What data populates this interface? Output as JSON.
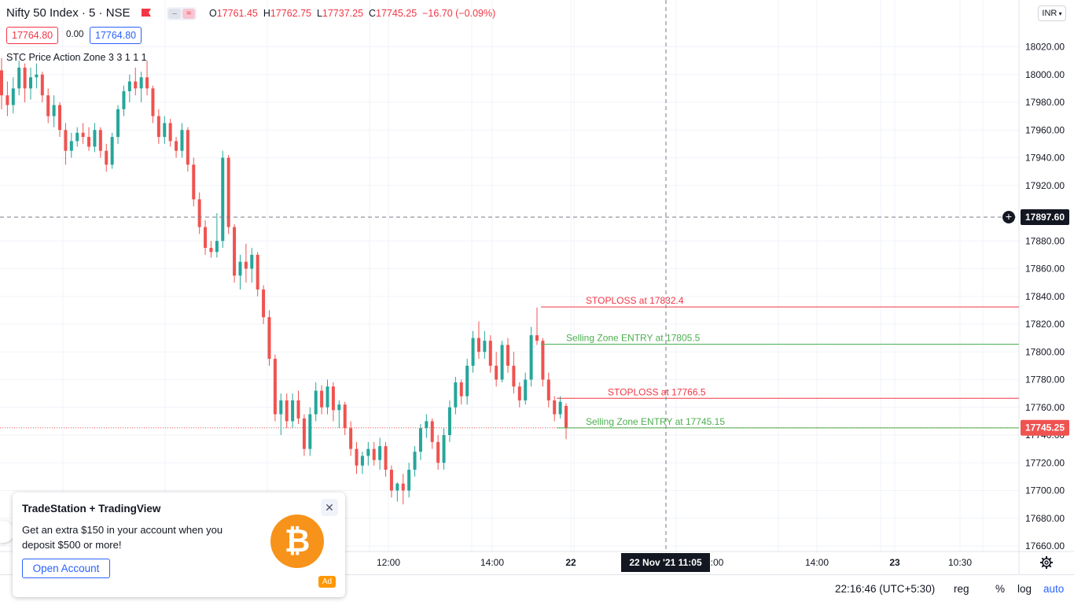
{
  "header": {
    "symbol": "Nifty 50 Index · 5 · NSE",
    "ohlc": {
      "o_label": "O",
      "o": "17761.45",
      "h_label": "H",
      "h": "17762.75",
      "l_label": "L",
      "l": "17737.25",
      "c_label": "C",
      "c": "17745.25",
      "change": "−16.70 (−0.09%)"
    },
    "sell_price": "17764.80",
    "spread": "0.00",
    "buy_price": "17764.80",
    "indicator": "STC Price Action Zone 3 3 1 1 1",
    "currency": "INR"
  },
  "price_axis": {
    "crosshair_price": "17897.60",
    "last_price": "17745.25"
  },
  "time_axis": {
    "crosshair_time": "22 Nov '21   11:05"
  },
  "status_bar": {
    "clock": "22:16:46 (UTC+5:30)",
    "session": "reg",
    "percent": "%",
    "log": "log",
    "auto": "auto"
  },
  "ad": {
    "title": "TradeStation + TradingView",
    "text": "Get an extra $150 in your account when you deposit $500 or more!",
    "button": "Open Account",
    "close": "✕",
    "coin": "₿",
    "tag": "Ad"
  },
  "colors": {
    "up": "#26a69a",
    "down": "#ef5350",
    "grid": "#f0f3fa",
    "stoploss": "#f23645",
    "entry": "#4caf50"
  },
  "chart_data": {
    "type": "candlestick",
    "title": "Nifty 50 Index · 5 · NSE",
    "ylim": [
      17650,
      18050
    ],
    "y_ticks": [
      17660,
      17680,
      17700,
      17720,
      17740,
      17760,
      17780,
      17800,
      17820,
      17840,
      17860,
      17880,
      17920,
      17940,
      17960,
      17980,
      18000,
      18020
    ],
    "x_ticks": [
      "12:00",
      "14:00",
      "22",
      "14:00",
      "23",
      "10:30"
    ],
    "annotations": [
      {
        "label": "STOPLOSS at 17832.4",
        "y": 17832.4,
        "kind": "stoploss"
      },
      {
        "label": "Selling Zone ENTRY at 17805.5",
        "y": 17805.5,
        "kind": "entry"
      },
      {
        "label": "STOPLOSS at 17766.5",
        "y": 17766.5,
        "kind": "stoploss"
      },
      {
        "label": "Selling Zone ENTRY at 17745.15",
        "y": 17745.15,
        "kind": "entry"
      }
    ],
    "candles_ohlc": [
      [
        18003,
        18012,
        17975,
        17985
      ],
      [
        17985,
        17995,
        17970,
        17978
      ],
      [
        17978,
        17998,
        17972,
        17990
      ],
      [
        17990,
        18010,
        17985,
        18005
      ],
      [
        18005,
        18008,
        17980,
        17990
      ],
      [
        17990,
        18005,
        17982,
        17998
      ],
      [
        17998,
        18008,
        17990,
        18000
      ],
      [
        18000,
        18002,
        17980,
        17985
      ],
      [
        17985,
        17990,
        17965,
        17970
      ],
      [
        17970,
        17985,
        17962,
        17978
      ],
      [
        17978,
        17980,
        17955,
        17960
      ],
      [
        17960,
        17965,
        17935,
        17945
      ],
      [
        17945,
        17958,
        17940,
        17952
      ],
      [
        17952,
        17962,
        17948,
        17958
      ],
      [
        17958,
        17965,
        17950,
        17955
      ],
      [
        17955,
        17962,
        17945,
        17948
      ],
      [
        17948,
        17965,
        17944,
        17960
      ],
      [
        17960,
        17962,
        17940,
        17945
      ],
      [
        17945,
        17950,
        17930,
        17935
      ],
      [
        17935,
        17958,
        17932,
        17955
      ],
      [
        17955,
        17978,
        17950,
        17975
      ],
      [
        17975,
        17992,
        17970,
        17988
      ],
      [
        17988,
        18000,
        17980,
        17995
      ],
      [
        17995,
        18005,
        17985,
        17990
      ],
      [
        17990,
        18002,
        17980,
        17998
      ],
      [
        17998,
        18010,
        17985,
        17990
      ],
      [
        17990,
        17992,
        17965,
        17970
      ],
      [
        17970,
        17975,
        17950,
        17955
      ],
      [
        17955,
        17970,
        17950,
        17965
      ],
      [
        17965,
        17968,
        17948,
        17952
      ],
      [
        17952,
        17955,
        17940,
        17945
      ],
      [
        17945,
        17965,
        17940,
        17960
      ],
      [
        17960,
        17962,
        17930,
        17935
      ],
      [
        17935,
        17940,
        17905,
        17910
      ],
      [
        17910,
        17915,
        17885,
        17890
      ],
      [
        17890,
        17895,
        17870,
        17875
      ],
      [
        17875,
        17880,
        17868,
        17872
      ],
      [
        17872,
        17900,
        17868,
        17880
      ],
      [
        17880,
        17945,
        17875,
        17940
      ],
      [
        17940,
        17942,
        17885,
        17890
      ],
      [
        17890,
        17892,
        17850,
        17855
      ],
      [
        17855,
        17870,
        17845,
        17865
      ],
      [
        17865,
        17878,
        17850,
        17860
      ],
      [
        17860,
        17875,
        17850,
        17870
      ],
      [
        17870,
        17872,
        17840,
        17845
      ],
      [
        17845,
        17848,
        17820,
        17825
      ],
      [
        17825,
        17830,
        17790,
        17795
      ],
      [
        17795,
        17798,
        17750,
        17755
      ],
      [
        17755,
        17770,
        17740,
        17765
      ],
      [
        17765,
        17770,
        17745,
        17750
      ],
      [
        17750,
        17770,
        17745,
        17765
      ],
      [
        17765,
        17772,
        17748,
        17752
      ],
      [
        17752,
        17755,
        17725,
        17730
      ],
      [
        17730,
        17760,
        17725,
        17755
      ],
      [
        17755,
        17778,
        17750,
        17772
      ],
      [
        17772,
        17776,
        17755,
        17760
      ],
      [
        17760,
        17780,
        17755,
        17775
      ],
      [
        17775,
        17778,
        17750,
        17758
      ],
      [
        17758,
        17765,
        17745,
        17762
      ],
      [
        17762,
        17764,
        17740,
        17745
      ],
      [
        17745,
        17750,
        17725,
        17730
      ],
      [
        17730,
        17735,
        17712,
        17718
      ],
      [
        17718,
        17728,
        17712,
        17725
      ],
      [
        17725,
        17735,
        17718,
        17730
      ],
      [
        17730,
        17735,
        17718,
        17722
      ],
      [
        17722,
        17738,
        17715,
        17732
      ],
      [
        17732,
        17735,
        17710,
        17715
      ],
      [
        17715,
        17718,
        17695,
        17700
      ],
      [
        17700,
        17706,
        17692,
        17705
      ],
      [
        17705,
        17712,
        17690,
        17700
      ],
      [
        17700,
        17720,
        17695,
        17715
      ],
      [
        17715,
        17732,
        17710,
        17728
      ],
      [
        17728,
        17748,
        17722,
        17745
      ],
      [
        17745,
        17755,
        17738,
        17750
      ],
      [
        17750,
        17752,
        17730,
        17735
      ],
      [
        17735,
        17740,
        17715,
        17720
      ],
      [
        17720,
        17745,
        17715,
        17740
      ],
      [
        17740,
        17765,
        17735,
        17760
      ],
      [
        17760,
        17782,
        17755,
        17778
      ],
      [
        17778,
        17780,
        17762,
        17768
      ],
      [
        17768,
        17795,
        17762,
        17790
      ],
      [
        17790,
        17815,
        17785,
        17810
      ],
      [
        17810,
        17822,
        17795,
        17800
      ],
      [
        17800,
        17815,
        17795,
        17808
      ],
      [
        17808,
        17812,
        17785,
        17790
      ],
      [
        17790,
        17800,
        17775,
        17780
      ],
      [
        17780,
        17808,
        17778,
        17805
      ],
      [
        17805,
        17810,
        17785,
        17790
      ],
      [
        17790,
        17800,
        17770,
        17775
      ],
      [
        17775,
        17778,
        17760,
        17765
      ],
      [
        17765,
        17785,
        17762,
        17780
      ],
      [
        17780,
        17818,
        17775,
        17812
      ],
      [
        17812,
        17832,
        17805,
        17808
      ],
      [
        17808,
        17810,
        17775,
        17780
      ],
      [
        17780,
        17785,
        17760,
        17765
      ],
      [
        17765,
        17768,
        17750,
        17755
      ],
      [
        17755,
        17768,
        17752,
        17764
      ],
      [
        17761,
        17763,
        17737,
        17745
      ]
    ]
  }
}
